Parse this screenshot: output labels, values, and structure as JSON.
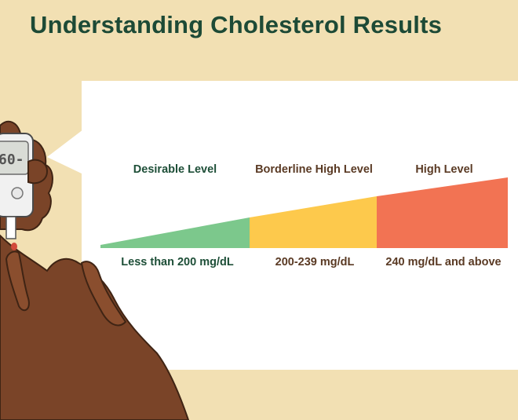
{
  "title": "Understanding Cholesterol Results",
  "meter_display": "60-",
  "levels": [
    {
      "name": "Desirable Level",
      "range": "Less than 200 mg/dL",
      "color": "#7cc88c"
    },
    {
      "name": "Borderline High Level",
      "range": "200-239 mg/dL",
      "color": "#fdc94c"
    },
    {
      "name": "High Level",
      "range": "240 mg/dL and above",
      "color": "#f27353"
    }
  ],
  "colors": {
    "background": "#f2e0b3",
    "title": "#1d4a36",
    "skin": "#7a4428",
    "skin_outline": "#3f2414"
  }
}
